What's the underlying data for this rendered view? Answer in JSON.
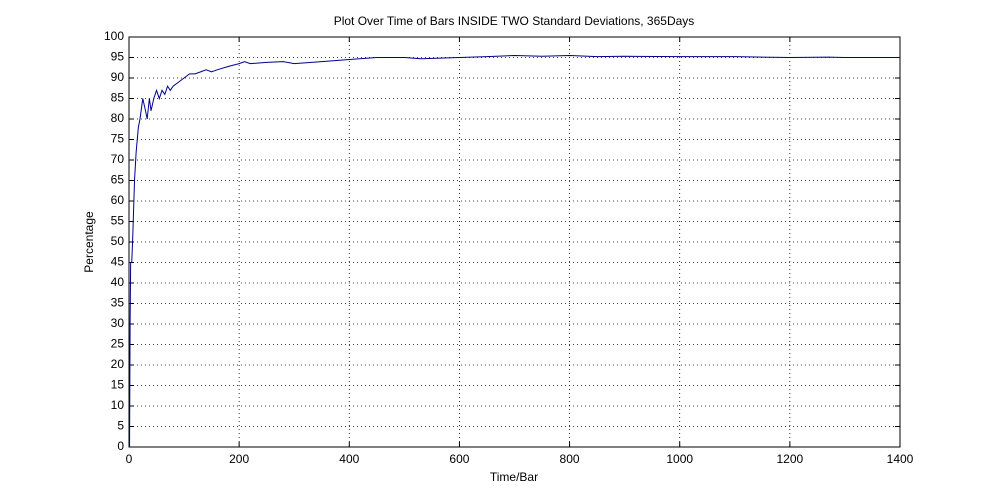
{
  "chart_data": {
    "type": "line",
    "title": "Plot Over Time of Bars INSIDE TWO Standard Deviations, 365Days",
    "x_label": "Time/Bar",
    "y_label": "Percentage",
    "xlim": [
      0,
      1400
    ],
    "xticks": [
      0,
      200,
      400,
      600,
      800,
      1000,
      1200,
      1400
    ],
    "ylim": [
      0,
      100
    ],
    "yticks": [
      0,
      5,
      10,
      15,
      20,
      25,
      30,
      35,
      40,
      45,
      50,
      55,
      60,
      65,
      70,
      75,
      80,
      85,
      90,
      95,
      100
    ],
    "grid": true,
    "series": [
      {
        "color": "#00008b",
        "x": [
          1,
          2,
          3,
          5,
          7,
          10,
          13,
          17,
          20,
          25,
          30,
          33,
          37,
          40,
          45,
          50,
          55,
          60,
          65,
          70,
          75,
          80,
          90,
          100,
          110,
          120,
          130,
          140,
          150,
          160,
          180,
          200,
          210,
          220,
          250,
          280,
          300,
          350,
          400,
          450,
          500,
          530,
          600,
          650,
          700,
          750,
          800,
          850,
          900,
          1000,
          1100,
          1200,
          1270,
          1300,
          1400
        ],
        "values": [
          0,
          30,
          45,
          45,
          52,
          65,
          72,
          78,
          80,
          85,
          82,
          80,
          85,
          82,
          85,
          87,
          85,
          87,
          86,
          88,
          87,
          88,
          89,
          90,
          91,
          91,
          91.5,
          92,
          91.5,
          92,
          92.8,
          93.5,
          94,
          93.5,
          93.8,
          94,
          93.5,
          94,
          94.5,
          95,
          95,
          94.7,
          95,
          95.2,
          95.5,
          95.3,
          95.5,
          95.2,
          95.3,
          95.2,
          95.2,
          95,
          95.1,
          95,
          95
        ]
      }
    ]
  }
}
